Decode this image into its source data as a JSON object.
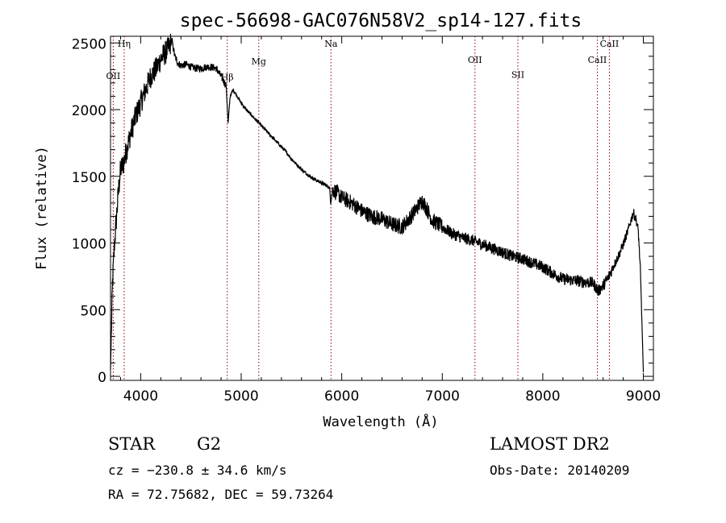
{
  "chart_data": {
    "type": "line",
    "title": "spec-56698-GAC076N58V2_sp14-127.fits",
    "xlabel": "Wavelength (Å)",
    "ylabel": "Flux (relative)",
    "xlim": [
      3700,
      9100
    ],
    "ylim": [
      -30,
      2550
    ],
    "xticks": [
      4000,
      5000,
      6000,
      7000,
      8000,
      9000
    ],
    "yticks": [
      0,
      500,
      1000,
      1500,
      2000,
      2500
    ],
    "grid": false,
    "line_color": "#000000",
    "marker_color": "#8b0000",
    "line_markers": [
      {
        "name": "Hη",
        "x": 3836,
        "label_y": 2470
      },
      {
        "name": "OII",
        "x": 3727,
        "label_y": 2230
      },
      {
        "name": "Hβ",
        "x": 4861,
        "label_y": 2220
      },
      {
        "name": "Mg",
        "x": 5175,
        "label_y": 2340
      },
      {
        "name": "Na",
        "x": 5893,
        "label_y": 2470
      },
      {
        "name": "OII",
        "x": 7325,
        "label_y": 2350
      },
      {
        "name": "SII",
        "x": 7752,
        "label_y": 2240
      },
      {
        "name": "CaII",
        "x": 8542,
        "label_y": 2350
      },
      {
        "name": "CaII",
        "x": 8662,
        "label_y": 2470
      }
    ],
    "series": [
      {
        "x": [
          3700,
          3720,
          3740,
          3760,
          3780,
          3800,
          3830,
          3860,
          3900,
          3950,
          4000,
          4050,
          4100,
          4150,
          4200,
          4250,
          4290,
          4310,
          4340,
          4370,
          4400,
          4450,
          4500,
          4550,
          4600,
          4650,
          4700,
          4750,
          4800,
          4850,
          4870,
          4890,
          4920,
          4960,
          5000,
          5050,
          5100,
          5150,
          5200,
          5250,
          5300,
          5350,
          5400,
          5450,
          5500,
          5550,
          5600,
          5650,
          5700,
          5750,
          5800,
          5850,
          5880,
          5890,
          5910,
          5950,
          6000,
          6100,
          6200,
          6300,
          6400,
          6500,
          6600,
          6700,
          6800,
          6850,
          6900,
          7000,
          7100,
          7200,
          7300,
          7400,
          7500,
          7600,
          7700,
          7800,
          7900,
          8000,
          8100,
          8200,
          8300,
          8400,
          8500,
          8550,
          8600,
          8650,
          8700,
          8750,
          8800,
          8850,
          8900,
          8930,
          8950,
          8970,
          8990,
          9000
        ],
        "y": [
          50,
          700,
          1000,
          1200,
          1400,
          1550,
          1600,
          1700,
          1820,
          1950,
          2050,
          2150,
          2250,
          2300,
          2380,
          2430,
          2480,
          2520,
          2400,
          2350,
          2330,
          2340,
          2320,
          2310,
          2310,
          2320,
          2320,
          2310,
          2250,
          2180,
          1900,
          2100,
          2150,
          2100,
          2050,
          2000,
          1960,
          1920,
          1880,
          1840,
          1800,
          1760,
          1720,
          1680,
          1630,
          1590,
          1550,
          1520,
          1490,
          1470,
          1450,
          1430,
          1410,
          1300,
          1400,
          1380,
          1340,
          1300,
          1240,
          1200,
          1180,
          1140,
          1120,
          1210,
          1320,
          1250,
          1170,
          1120,
          1070,
          1040,
          1020,
          990,
          960,
          930,
          900,
          880,
          850,
          820,
          770,
          730,
          720,
          710,
          700,
          640,
          680,
          740,
          820,
          900,
          990,
          1100,
          1230,
          1170,
          1090,
          800,
          300,
          30
        ]
      }
    ]
  },
  "info": {
    "object_class": "STAR",
    "subclass": "G2",
    "survey": "LAMOST DR2",
    "cz": "cz = −230.8 ± 34.6 km/s",
    "obs_date": "Obs-Date: 20140209",
    "radec": "RA =  72.75682, DEC =  59.73264"
  }
}
